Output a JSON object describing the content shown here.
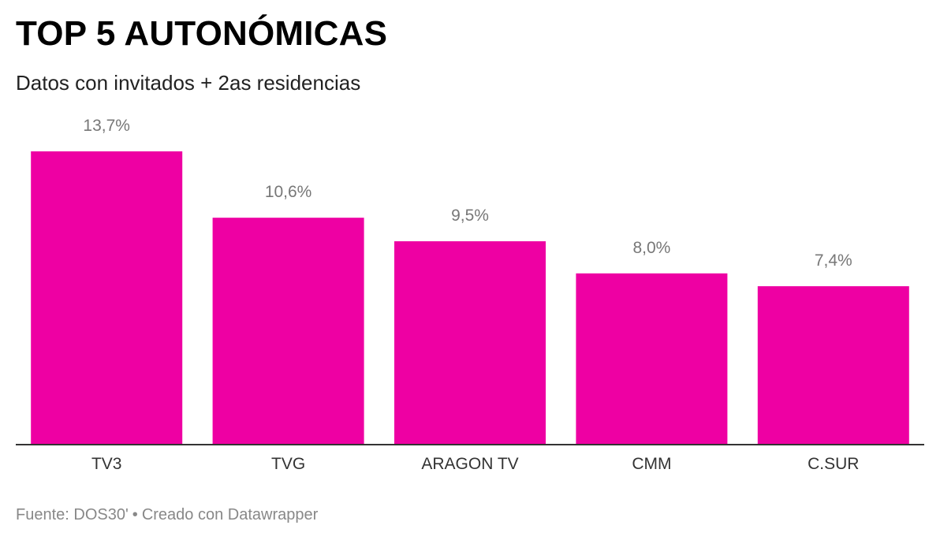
{
  "header": {
    "title": "TOP 5 AUTONÓMICAS",
    "subtitle": "Datos con invitados + 2as residencias"
  },
  "footer": {
    "source": "Fuente: DOS30'",
    "separator": "•",
    "credit": "Creado con Datawrapper"
  },
  "colors": {
    "bar": "#ee00a3",
    "baseline": "#333333",
    "value_label": "#777777",
    "category_label": "#333333"
  },
  "chart_data": {
    "type": "bar",
    "title": "TOP 5 AUTONÓMICAS",
    "subtitle": "Datos con invitados + 2as residencias",
    "categories": [
      "TV3",
      "TVG",
      "ARAGON TV",
      "CMM",
      "C.SUR"
    ],
    "values": [
      13.7,
      10.6,
      9.5,
      8.0,
      7.4
    ],
    "value_labels": [
      "13,7%",
      "10,6%",
      "9,5%",
      "8,0%",
      "7,4%"
    ],
    "unit": "%",
    "ylim": [
      0,
      13.7
    ],
    "grid": false,
    "legend": "none"
  }
}
